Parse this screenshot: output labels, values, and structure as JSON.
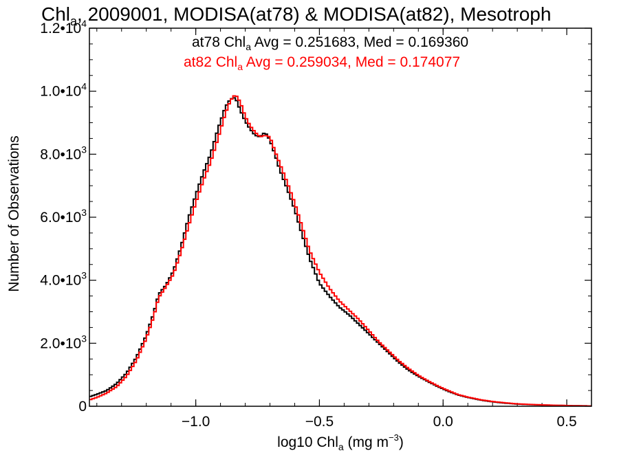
{
  "chart_data": {
    "type": "line",
    "title": {
      "prefix": "Chl",
      "subscript": "a",
      "suffix": ", 2009001, MODISA(at78) & MODISA(at82), Mesotroph"
    },
    "xlabel": {
      "prefix": "log10 Chl",
      "subscript": "a",
      "units_base": " (mg m",
      "units_exp": "−3",
      "units_close": ")"
    },
    "ylabel": "Number of Observations",
    "xlim": [
      -1.43,
      0.6
    ],
    "ylim": [
      0,
      12000
    ],
    "x_ticks": [
      {
        "value": -1.0,
        "label": "−1.0"
      },
      {
        "value": -0.5,
        "label": "−0.5"
      },
      {
        "value": 0.0,
        "label": "0.0"
      },
      {
        "value": 0.5,
        "label": "0.5"
      }
    ],
    "y_ticks": [
      {
        "value": 0,
        "mantissa": "0",
        "exp": ""
      },
      {
        "value": 2000,
        "mantissa": "2.0•10",
        "exp": "3"
      },
      {
        "value": 4000,
        "mantissa": "4.0•10",
        "exp": "3"
      },
      {
        "value": 6000,
        "mantissa": "6.0•10",
        "exp": "3"
      },
      {
        "value": 8000,
        "mantissa": "8.0•10",
        "exp": "3"
      },
      {
        "value": 10000,
        "mantissa": "1.0•10",
        "exp": "4"
      },
      {
        "value": 12000,
        "mantissa": "1.2•10",
        "exp": "4"
      }
    ],
    "annotations": [
      {
        "prefix": "at78 Chl",
        "subscript": "a",
        "suffix": " Avg = 0.251683, Med = 0.169360",
        "color": "#000000"
      },
      {
        "prefix": "at82 Chl",
        "subscript": "a",
        "suffix": " Avg = 0.259034, Med = 0.174077",
        "color": "#ff0000"
      }
    ],
    "series": [
      {
        "color": "#000000",
        "points": [
          [
            -1.43,
            300
          ],
          [
            -1.4,
            380
          ],
          [
            -1.36,
            500
          ],
          [
            -1.32,
            720
          ],
          [
            -1.28,
            1050
          ],
          [
            -1.24,
            1550
          ],
          [
            -1.2,
            2250
          ],
          [
            -1.17,
            2950
          ],
          [
            -1.15,
            3550
          ],
          [
            -1.12,
            3850
          ],
          [
            -1.09,
            4300
          ],
          [
            -1.06,
            5050
          ],
          [
            -1.03,
            5950
          ],
          [
            -1.0,
            6700
          ],
          [
            -0.97,
            7400
          ],
          [
            -0.94,
            8000
          ],
          [
            -0.91,
            8800
          ],
          [
            -0.88,
            9500
          ],
          [
            -0.86,
            9750
          ],
          [
            -0.84,
            9800
          ],
          [
            -0.82,
            9400
          ],
          [
            -0.8,
            9050
          ],
          [
            -0.78,
            8800
          ],
          [
            -0.76,
            8600
          ],
          [
            -0.74,
            8550
          ],
          [
            -0.72,
            8700
          ],
          [
            -0.7,
            8450
          ],
          [
            -0.68,
            8000
          ],
          [
            -0.66,
            7500
          ],
          [
            -0.63,
            6900
          ],
          [
            -0.6,
            6250
          ],
          [
            -0.57,
            5450
          ],
          [
            -0.54,
            4700
          ],
          [
            -0.5,
            3900
          ],
          [
            -0.46,
            3500
          ],
          [
            -0.42,
            3150
          ],
          [
            -0.38,
            2900
          ],
          [
            -0.34,
            2600
          ],
          [
            -0.3,
            2300
          ],
          [
            -0.26,
            2000
          ],
          [
            -0.22,
            1700
          ],
          [
            -0.18,
            1400
          ],
          [
            -0.14,
            1150
          ],
          [
            -0.1,
            950
          ],
          [
            -0.06,
            780
          ],
          [
            -0.02,
            620
          ],
          [
            0.02,
            480
          ],
          [
            0.06,
            360
          ],
          [
            0.1,
            280
          ],
          [
            0.15,
            200
          ],
          [
            0.2,
            140
          ],
          [
            0.25,
            100
          ],
          [
            0.3,
            70
          ],
          [
            0.36,
            50
          ],
          [
            0.42,
            35
          ],
          [
            0.48,
            25
          ],
          [
            0.54,
            15
          ],
          [
            0.6,
            10
          ]
        ]
      },
      {
        "color": "#ff0000",
        "points": [
          [
            -1.43,
            200
          ],
          [
            -1.4,
            280
          ],
          [
            -1.36,
            420
          ],
          [
            -1.32,
            620
          ],
          [
            -1.28,
            950
          ],
          [
            -1.24,
            1450
          ],
          [
            -1.2,
            2150
          ],
          [
            -1.17,
            2850
          ],
          [
            -1.15,
            3450
          ],
          [
            -1.12,
            3800
          ],
          [
            -1.09,
            4200
          ],
          [
            -1.06,
            4900
          ],
          [
            -1.03,
            5700
          ],
          [
            -1.0,
            6450
          ],
          [
            -0.97,
            7150
          ],
          [
            -0.94,
            7750
          ],
          [
            -0.91,
            8500
          ],
          [
            -0.88,
            9300
          ],
          [
            -0.86,
            9700
          ],
          [
            -0.84,
            9900
          ],
          [
            -0.82,
            9650
          ],
          [
            -0.8,
            9200
          ],
          [
            -0.78,
            8900
          ],
          [
            -0.76,
            8700
          ],
          [
            -0.74,
            8550
          ],
          [
            -0.72,
            8600
          ],
          [
            -0.7,
            8550
          ],
          [
            -0.68,
            8100
          ],
          [
            -0.66,
            7700
          ],
          [
            -0.63,
            7100
          ],
          [
            -0.6,
            6450
          ],
          [
            -0.57,
            5700
          ],
          [
            -0.54,
            4950
          ],
          [
            -0.5,
            4250
          ],
          [
            -0.46,
            3750
          ],
          [
            -0.42,
            3350
          ],
          [
            -0.38,
            3050
          ],
          [
            -0.34,
            2750
          ],
          [
            -0.3,
            2400
          ],
          [
            -0.26,
            2050
          ],
          [
            -0.22,
            1750
          ],
          [
            -0.18,
            1450
          ],
          [
            -0.14,
            1200
          ],
          [
            -0.1,
            980
          ],
          [
            -0.06,
            800
          ],
          [
            -0.02,
            640
          ],
          [
            0.02,
            500
          ],
          [
            0.06,
            370
          ],
          [
            0.1,
            290
          ],
          [
            0.15,
            210
          ],
          [
            0.2,
            150
          ],
          [
            0.25,
            110
          ],
          [
            0.3,
            75
          ],
          [
            0.36,
            55
          ],
          [
            0.42,
            38
          ],
          [
            0.48,
            26
          ],
          [
            0.54,
            16
          ],
          [
            0.6,
            10
          ]
        ]
      }
    ]
  }
}
